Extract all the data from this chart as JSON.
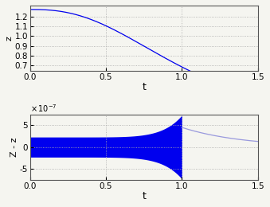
{
  "upper_xlim": [
    0,
    1.5
  ],
  "upper_ylim": [
    0.645,
    1.31
  ],
  "upper_yticks": [
    0.7,
    0.8,
    0.9,
    1.0,
    1.1,
    1.2
  ],
  "upper_xticks": [
    0,
    0.5,
    1.0,
    1.5
  ],
  "upper_ylabel": "z",
  "upper_xlabel": "t",
  "lower_xlim": [
    0,
    1.5
  ],
  "lower_ylim": [
    -7.5e-07,
    7.5e-07
  ],
  "lower_yticks": [
    -5e-07,
    0,
    5e-07
  ],
  "lower_ytick_labels": [
    "-5",
    "0",
    "5"
  ],
  "lower_xticks": [
    0,
    0.5,
    1.0,
    1.5
  ],
  "lower_ylabel": "Z - z",
  "lower_xlabel": "t",
  "line_color": "#0000EE",
  "after_color": "#9999DD",
  "background_color": "#f5f5f0",
  "grid_color": "#aaaaaa",
  "grid_style": ":"
}
